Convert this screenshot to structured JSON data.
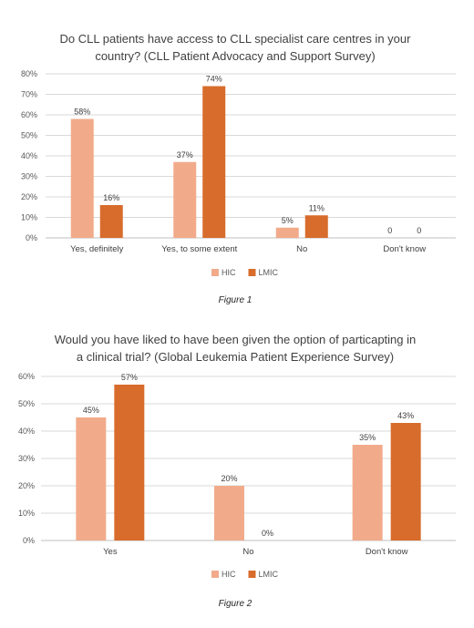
{
  "colors": {
    "HIC": "#f2ab8a",
    "LMIC": "#d76c2c"
  },
  "chart_data": [
    {
      "type": "bar",
      "title_lines": [
        "Do CLL patients have access to CLL specialist care centres in your",
        "country? (CLL Patient Advocacy and Support Survey)"
      ],
      "categories": [
        "Yes, definitely",
        "Yes, to some extent",
        "No",
        "Don't know"
      ],
      "series": [
        {
          "name": "HIC",
          "values": [
            58,
            37,
            5,
            0
          ],
          "labels": [
            "58%",
            "37%",
            "5%",
            "0"
          ]
        },
        {
          "name": "LMIC",
          "values": [
            16,
            74,
            11,
            0
          ],
          "labels": [
            "16%",
            "74%",
            "11%",
            "0"
          ]
        }
      ],
      "ylim": [
        0,
        80
      ],
      "yticks": [
        "0%",
        "10%",
        "20%",
        "30%",
        "40%",
        "50%",
        "60%",
        "70%",
        "80%"
      ],
      "grid": true,
      "legend": "bottom",
      "caption": "Figure 1"
    },
    {
      "type": "bar",
      "title_lines": [
        "Would you have liked to have been given the option of particapting in",
        "a clinical trial? (Global Leukemia Patient Experience Survey)"
      ],
      "categories": [
        "Yes",
        "No",
        "Don't know"
      ],
      "series": [
        {
          "name": "HIC",
          "values": [
            45,
            20,
            35
          ],
          "labels": [
            "45%",
            "20%",
            "35%"
          ]
        },
        {
          "name": "LMIC",
          "values": [
            57,
            0,
            43
          ],
          "labels": [
            "57%",
            "0%",
            "43%"
          ]
        }
      ],
      "ylim": [
        0,
        60
      ],
      "yticks": [
        "0%",
        "10%",
        "20%",
        "30%",
        "40%",
        "50%",
        "60%"
      ],
      "grid": true,
      "legend": "bottom",
      "caption": "Figure 2"
    }
  ]
}
